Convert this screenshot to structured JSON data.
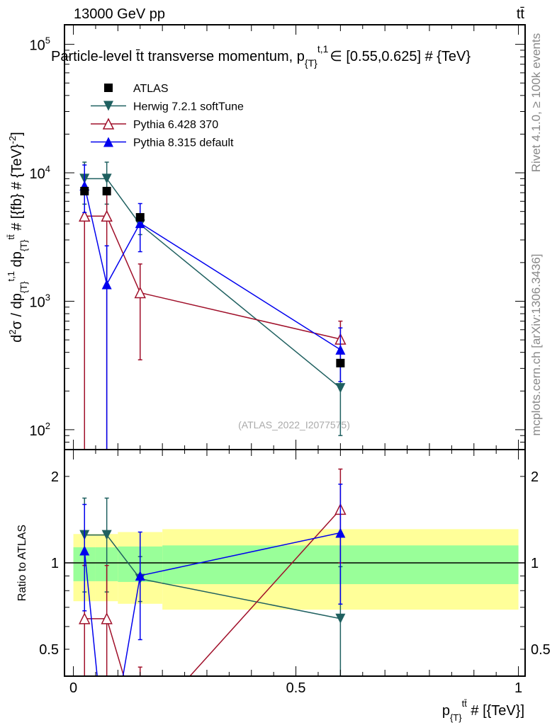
{
  "header": {
    "energy": "13000 GeV pp",
    "process": "tt̄"
  },
  "side": {
    "rivet": "Rivet 4.1.0, ≥ 100k events",
    "mcplots": "mcplots.cern.ch [arXiv:1306.3436]"
  },
  "watermark": "(ATLAS_2022_I2077575)",
  "title": {
    "main": "Particle-level t̄t transverse momentum, p",
    "sub": "{T}",
    "sup": "t,1",
    "rest": "∈ [0.55,0.625] # {TeV}"
  },
  "ylabel": {
    "p1": "d",
    "s1": "2",
    "p2": "σ / dp",
    "sub1": "{T}",
    "sup1": "t,1",
    "p3": " dp",
    "sub2": "{T}",
    "sup2": "tt̄",
    "p4": " # [{fb} # {TeV}",
    "sup3": "-2",
    "p5": "]"
  },
  "xlabel": {
    "p1": "p",
    "sub": "{T}",
    "sup": "tt̄",
    "p2": " # [{TeV}]"
  },
  "ratio_label": "Ratio to ATLAS",
  "chart_data": {
    "type": "scatter",
    "xlim": [
      -0.02,
      1.015
    ],
    "main": {
      "yscale": "log",
      "ylim": [
        70,
        142000
      ],
      "yticks": [
        {
          "v": 100,
          "l": "10",
          "e": "2"
        },
        {
          "v": 1000,
          "l": "10",
          "e": "3"
        },
        {
          "v": 10000,
          "l": "10",
          "e": "4"
        },
        {
          "v": 100000,
          "l": "10",
          "e": "5"
        }
      ]
    },
    "ratio": {
      "yscale": "log",
      "ylim": [
        0.403,
        2.48
      ],
      "yticks": [
        {
          "v": 0.5,
          "l": "0.5"
        },
        {
          "v": 1,
          "l": "1"
        },
        {
          "v": 2,
          "l": "2"
        }
      ]
    },
    "xticks": [
      {
        "v": 0,
        "l": "0"
      },
      {
        "v": 0.5,
        "l": "0.5"
      },
      {
        "v": 1,
        "l": "1"
      }
    ],
    "x": [
      0.025,
      0.075,
      0.15,
      0.6
    ],
    "bins": [
      [
        0,
        0.05
      ],
      [
        0.05,
        0.1
      ],
      [
        0.1,
        0.2
      ],
      [
        0.2,
        1.0
      ]
    ],
    "data": {
      "name": "ATLAS",
      "color": "#000000",
      "values": [
        7200,
        7200,
        4500,
        330
      ]
    },
    "bands": {
      "yellow": [
        [
          0.735,
          1.26
        ],
        [
          0.735,
          1.26
        ],
        [
          0.72,
          1.28
        ],
        [
          0.687,
          1.31
        ]
      ],
      "green": [
        [
          0.863,
          1.133
        ],
        [
          0.863,
          1.133
        ],
        [
          0.858,
          1.14
        ],
        [
          0.843,
          1.15
        ]
      ],
      "yellow_color": "#ffff99",
      "green_color": "#99ff99"
    },
    "series": [
      {
        "name": "Herwig 7.2.1 softTune",
        "color": "#1f6060",
        "marker": "triangle-down",
        "values": [
          9000,
          9000,
          3960,
          211
        ],
        "err_lo": [
          5700,
          5700,
          3300,
          90
        ],
        "err_hi": [
          12100,
          12100,
          4730,
          320
        ]
      },
      {
        "name": "Pythia 6.428 370",
        "color": "#a0102a",
        "marker": "triangle-up-open",
        "values": [
          4600,
          4600,
          1165,
          507
        ],
        "err_lo": [
          0,
          0,
          350,
          330
        ],
        "err_hi": [
          7050,
          7050,
          1950,
          700
        ]
      },
      {
        "name": "Pythia 8.315 default",
        "color": "#0000ee",
        "marker": "triangle-up",
        "values": [
          7950,
          1355,
          4060,
          420
        ],
        "err_lo": [
          4900,
          0,
          2430,
          237
        ],
        "err_hi": [
          11500,
          2700,
          5760,
          620
        ]
      }
    ]
  }
}
